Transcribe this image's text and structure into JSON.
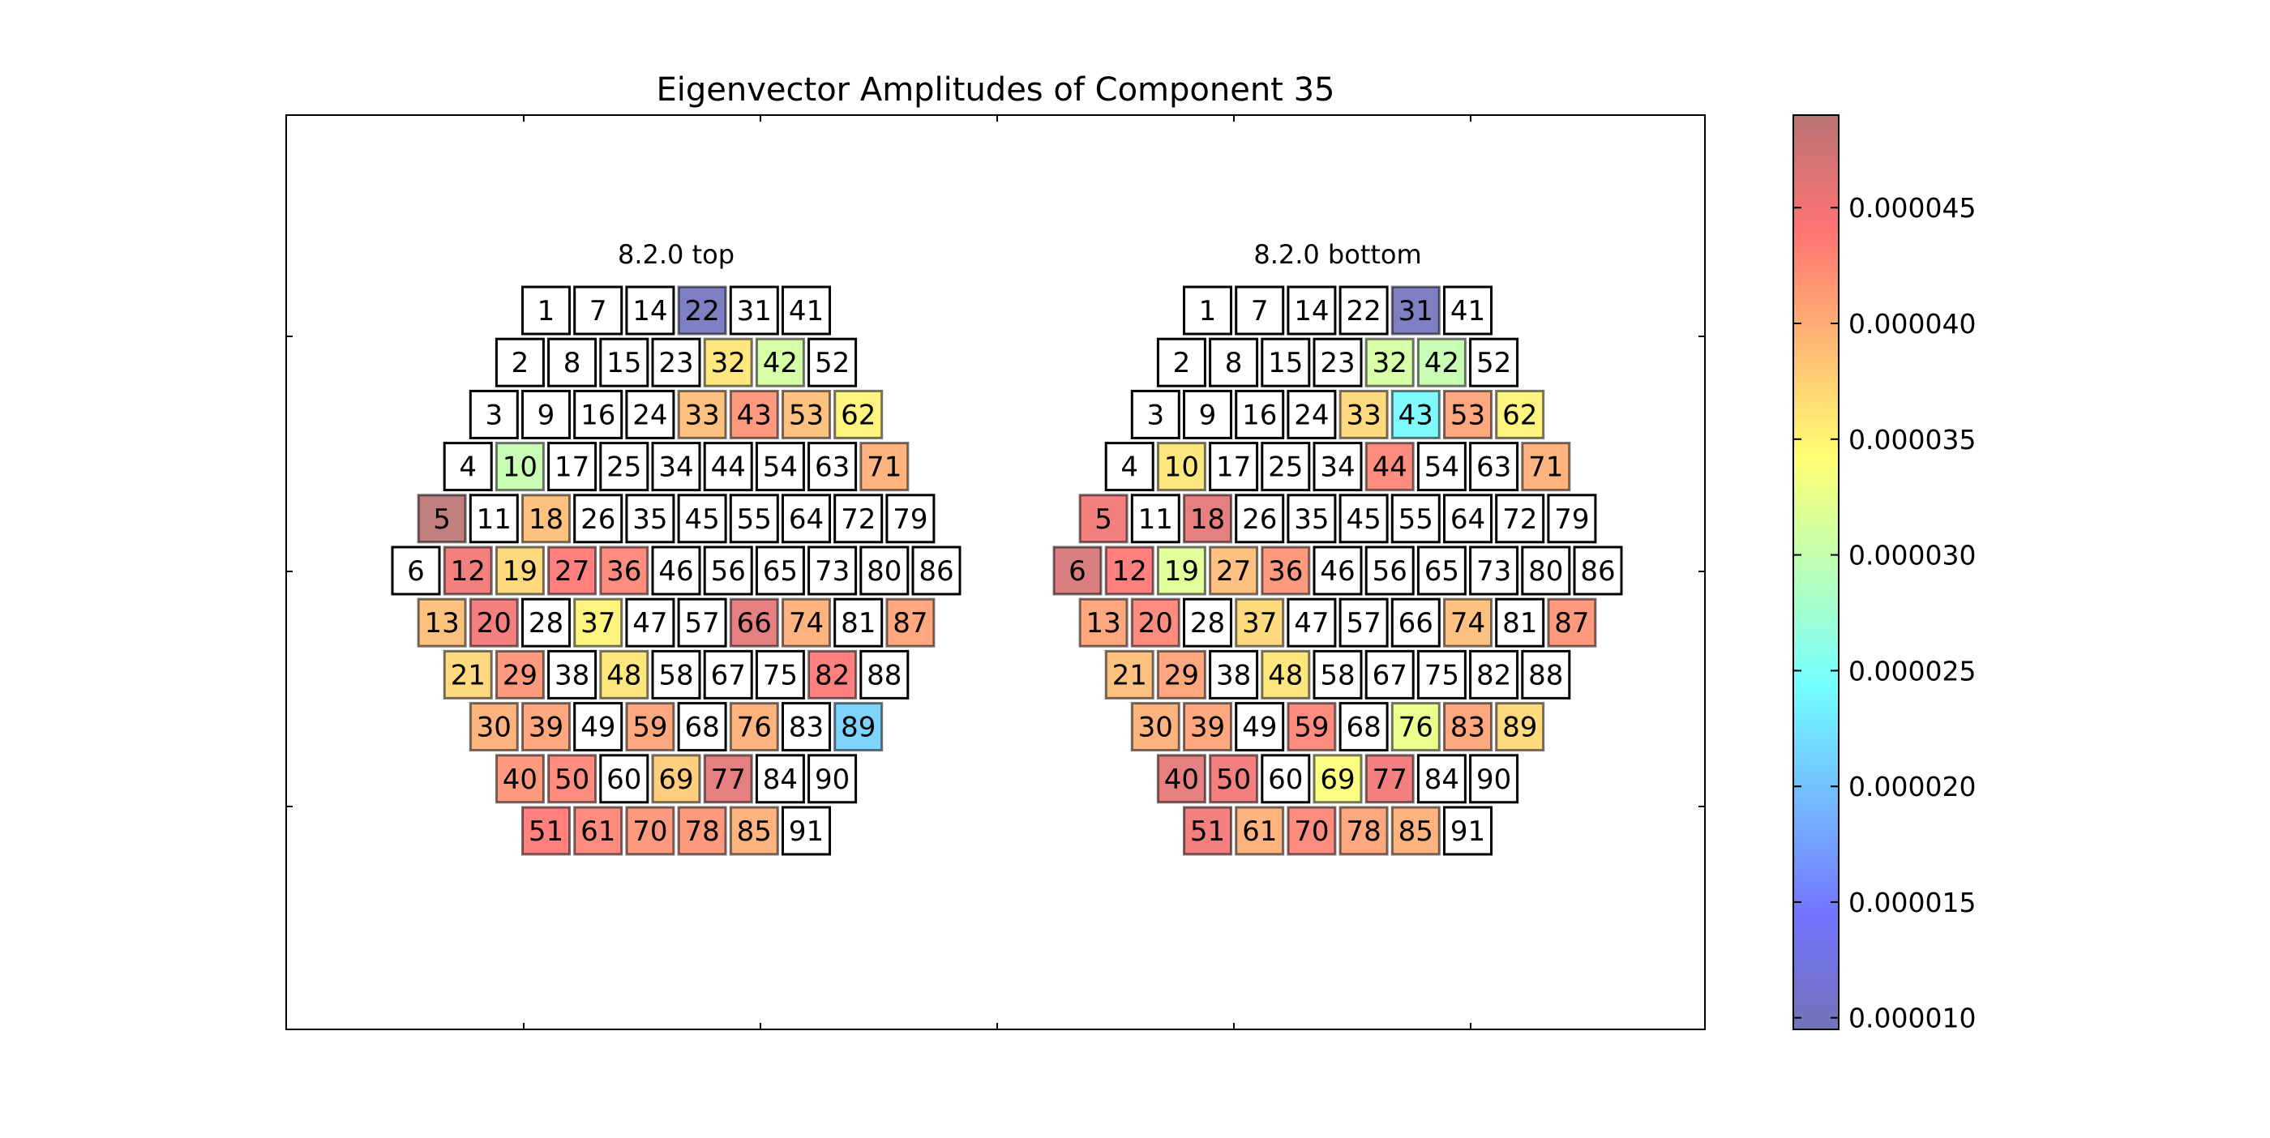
{
  "chart_data": {
    "type": "heatmap",
    "title": "Eigenvector Amplitudes of Component 35",
    "xlabel": "",
    "ylabel": "",
    "colormap": "jet",
    "alpha": 0.5,
    "colorbar": {
      "range": [
        9.5e-06,
        4.9e-05
      ],
      "ticks": [
        "0.000010",
        "0.000015",
        "0.000020",
        "0.000025",
        "0.000030",
        "0.000035",
        "0.000040",
        "0.000045"
      ],
      "tick_values": [
        1e-05,
        1.5e-05,
        2e-05,
        2.5e-05,
        3e-05,
        3.5e-05,
        4e-05,
        4.5e-05
      ],
      "placement": "right"
    },
    "layout_rows": [
      [
        1,
        7,
        14,
        22,
        31,
        41
      ],
      [
        2,
        8,
        15,
        23,
        32,
        42,
        52
      ],
      [
        3,
        9,
        16,
        24,
        33,
        43,
        53,
        62
      ],
      [
        4,
        10,
        17,
        25,
        34,
        44,
        54,
        63,
        71
      ],
      [
        5,
        11,
        18,
        26,
        35,
        45,
        55,
        64,
        72,
        79
      ],
      [
        6,
        12,
        19,
        27,
        36,
        46,
        56,
        65,
        73,
        80,
        86
      ],
      [
        13,
        20,
        28,
        37,
        47,
        57,
        66,
        74,
        81,
        87
      ],
      [
        21,
        29,
        38,
        48,
        58,
        67,
        75,
        82,
        88
      ],
      [
        30,
        39,
        49,
        59,
        68,
        76,
        83,
        89
      ],
      [
        40,
        50,
        60,
        69,
        77,
        84,
        90
      ],
      [
        51,
        61,
        70,
        78,
        85,
        91
      ]
    ],
    "panels": [
      {
        "name": "8.2.0 top",
        "values": {
          "22": 9.8e-06,
          "32": 3.6e-05,
          "42": 3.1e-05,
          "33": 3.9e-05,
          "43": 4.2e-05,
          "53": 3.9e-05,
          "62": 3.5e-05,
          "10": 3e-05,
          "71": 4e-05,
          "5": 4.9e-05,
          "18": 3.9e-05,
          "12": 4.5e-05,
          "19": 3.7e-05,
          "27": 4.4e-05,
          "36": 4.3e-05,
          "13": 3.9e-05,
          "20": 4.5e-05,
          "37": 3.5e-05,
          "66": 4.6e-05,
          "74": 4e-05,
          "87": 4.1e-05,
          "21": 3.7e-05,
          "29": 4.2e-05,
          "48": 3.6e-05,
          "82": 4.4e-05,
          "30": 4e-05,
          "39": 4.1e-05,
          "59": 4.1e-05,
          "76": 4e-05,
          "89": 2.1e-05,
          "40": 4.2e-05,
          "50": 4.3e-05,
          "69": 3.8e-05,
          "77": 4.6e-05,
          "51": 4.4e-05,
          "61": 4.3e-05,
          "70": 4.2e-05,
          "78": 4.2e-05,
          "85": 4e-05
        }
      },
      {
        "name": "8.2.0 bottom",
        "values": {
          "31": 9.8e-06,
          "32": 3.1e-05,
          "42": 3e-05,
          "33": 3.7e-05,
          "43": 2.4e-05,
          "53": 4.1e-05,
          "62": 3.5e-05,
          "10": 3.6e-05,
          "44": 4.3e-05,
          "71": 4e-05,
          "5": 4.5e-05,
          "18": 4.6e-05,
          "6": 4.7e-05,
          "12": 4.4e-05,
          "19": 3.2e-05,
          "27": 3.9e-05,
          "36": 4.2e-05,
          "13": 4.1e-05,
          "20": 4.3e-05,
          "37": 3.7e-05,
          "74": 3.9e-05,
          "87": 4.2e-05,
          "21": 3.9e-05,
          "29": 4.1e-05,
          "48": 3.6e-05,
          "30": 4e-05,
          "39": 4.1e-05,
          "59": 4.3e-05,
          "76": 3.3e-05,
          "83": 4.1e-05,
          "89": 3.7e-05,
          "40": 4.6e-05,
          "50": 4.5e-05,
          "69": 3.4e-05,
          "77": 4.5e-05,
          "51": 4.5e-05,
          "61": 4e-05,
          "70": 4.3e-05,
          "78": 4.1e-05,
          "85": 4e-05
        }
      }
    ]
  }
}
